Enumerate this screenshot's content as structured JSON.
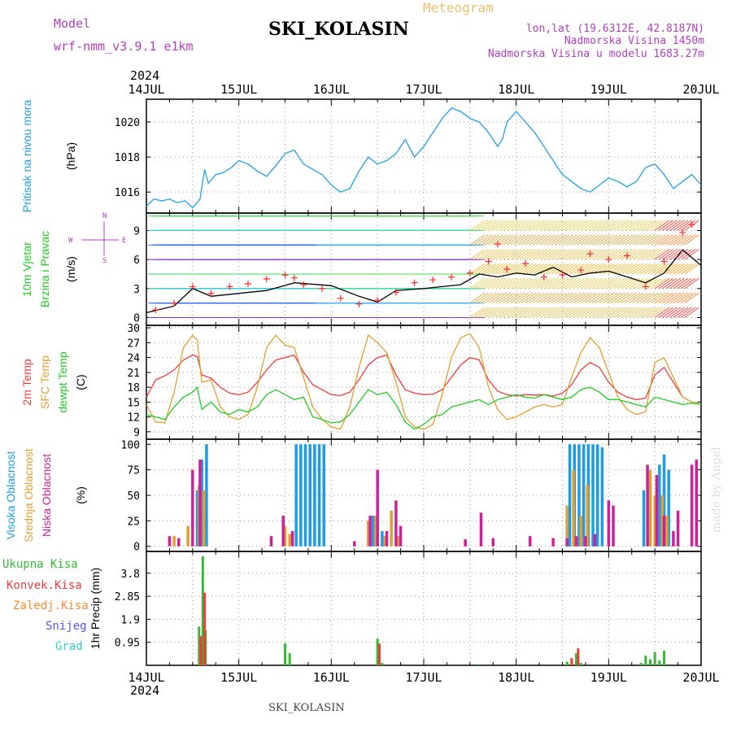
{
  "header": {
    "model_label": "Model",
    "model_name": "wrf-nmm_v3.9.1 e1km",
    "station": "SKI_KOLASIN",
    "product": "Meteogram",
    "lonlat": "lon,lat (19.6312E, 42.8187N)",
    "altitude": "Nadmorska Visina 1450m",
    "model_altitude": "Nadmorska Visina u modelu 1683.27m",
    "footer_station": "SKI_KOLASIN",
    "credit": "made by Angel"
  },
  "time_axis": {
    "year": "2024",
    "labels": [
      "14JUL",
      "15JUL",
      "16JUL",
      "17JUL",
      "18JUL",
      "19JUL",
      "20JUL"
    ]
  },
  "colors": {
    "pressure": "#1ea0e6",
    "wind_speed": "#000000",
    "gust": "#ff2a2a",
    "temp2m": "#ee3b3b",
    "sfc_temp": "#e0a030",
    "dewpt": "#22cc22",
    "high_cloud": "#1e9be6",
    "mid_cloud": "#e0a030",
    "low_cloud": "#cc2299",
    "total_precip": "#33bb33",
    "conv_precip": "#ee3b3b",
    "frz_precip": "#ff8833",
    "snow": "#5555ff",
    "hail": "#33cccc"
  },
  "chart_data": [
    {
      "type": "line",
      "id": "pressure",
      "ylabel": [
        "Pritisak na nivou mora",
        "(hPa)"
      ],
      "yticks": [
        1016,
        1018,
        1020
      ],
      "ylim": [
        1014.8,
        1021.3
      ],
      "grid": true,
      "series": [
        {
          "color_key": "pressure",
          "x": [
            0,
            0.08,
            0.17,
            0.25,
            0.33,
            0.42,
            0.5,
            0.58,
            0.63,
            0.67,
            0.75,
            0.83,
            0.92,
            1.0,
            1.1,
            1.2,
            1.3,
            1.4,
            1.5,
            1.6,
            1.7,
            1.8,
            1.9,
            2.0,
            2.1,
            2.2,
            2.3,
            2.4,
            2.5,
            2.6,
            2.7,
            2.8,
            2.9,
            3.0,
            3.1,
            3.2,
            3.3,
            3.4,
            3.5,
            3.6,
            3.7,
            3.8,
            3.85,
            3.9,
            4.0,
            4.1,
            4.2,
            4.3,
            4.4,
            4.5,
            4.6,
            4.7,
            4.8,
            4.9,
            5.0,
            5.1,
            5.2,
            5.3,
            5.4,
            5.5,
            5.6,
            5.7,
            5.8,
            5.9,
            6.0
          ],
          "y": [
            1015.2,
            1015.6,
            1015.5,
            1015.6,
            1015.4,
            1015.5,
            1015.1,
            1015.6,
            1017.3,
            1016.5,
            1017.0,
            1017.1,
            1017.4,
            1017.8,
            1017.6,
            1017.2,
            1016.9,
            1017.5,
            1018.2,
            1018.4,
            1017.6,
            1017.3,
            1017.0,
            1016.4,
            1016.0,
            1016.2,
            1017.2,
            1018.0,
            1017.6,
            1017.8,
            1018.2,
            1019.0,
            1018.0,
            1018.6,
            1019.4,
            1020.2,
            1020.8,
            1020.6,
            1020.2,
            1020.0,
            1019.4,
            1018.6,
            1019.0,
            1020.0,
            1020.6,
            1020.0,
            1019.4,
            1018.6,
            1017.8,
            1017.0,
            1016.6,
            1016.2,
            1016.0,
            1016.4,
            1016.8,
            1016.6,
            1016.3,
            1016.6,
            1017.4,
            1017.6,
            1017.0,
            1016.2,
            1016.6,
            1017.0,
            1016.4
          ]
        }
      ]
    },
    {
      "type": "line",
      "id": "wind",
      "ylabel": [
        "10m Vjetar",
        "Brzina i Pravac",
        "(m/s)"
      ],
      "compass": {
        "n": "N",
        "s": "S",
        "e": "E",
        "w": "W"
      },
      "yticks": [
        0,
        3,
        6,
        9
      ],
      "ylim": [
        -0.8,
        10.8
      ],
      "grid": true,
      "series": [
        {
          "name": "speed",
          "color_key": "wind_speed",
          "x": [
            0,
            0.3,
            0.5,
            0.7,
            1.0,
            1.3,
            1.6,
            2.0,
            2.3,
            2.5,
            2.7,
            3.0,
            3.2,
            3.4,
            3.6,
            3.8,
            4.0,
            4.2,
            4.4,
            4.6,
            4.8,
            5.0,
            5.2,
            5.4,
            5.6,
            5.8,
            6.0
          ],
          "y": [
            0.5,
            1.2,
            3.0,
            2.2,
            2.5,
            2.8,
            3.6,
            3.3,
            2.2,
            1.6,
            2.8,
            3.0,
            3.2,
            3.4,
            4.5,
            4.2,
            4.6,
            4.4,
            5.2,
            4.2,
            4.6,
            4.8,
            4.2,
            3.6,
            4.6,
            7.0,
            5.4
          ]
        },
        {
          "name": "gust",
          "color_key": "gust",
          "marker": "+",
          "x": [
            0.1,
            0.3,
            0.5,
            0.7,
            0.9,
            1.1,
            1.3,
            1.5,
            1.6,
            1.7,
            1.9,
            2.1,
            2.3,
            2.5,
            2.7,
            2.9,
            3.1,
            3.3,
            3.5,
            3.7,
            3.8,
            3.9,
            4.1,
            4.3,
            4.5,
            4.7,
            4.8,
            5.0,
            5.2,
            5.4,
            5.6,
            5.8,
            5.9
          ],
          "y": [
            0.8,
            1.5,
            3.2,
            2.5,
            3.2,
            3.5,
            4.0,
            4.4,
            4.1,
            3.4,
            3.0,
            2.0,
            1.4,
            1.8,
            2.6,
            3.6,
            3.9,
            4.2,
            4.6,
            5.8,
            7.6,
            5.0,
            5.6,
            4.2,
            4.4,
            4.9,
            6.6,
            6.0,
            6.4,
            3.2,
            5.8,
            8.8,
            9.6
          ]
        }
      ],
      "barbs_levels": [
        0,
        1.5,
        3,
        4.5,
        6,
        7.5,
        9,
        10.5
      ]
    },
    {
      "type": "line",
      "id": "temperature",
      "ylabel": [
        "2m Temp",
        "SFC Temp",
        "dewpt Temp",
        "(C)"
      ],
      "yticks": [
        9,
        12,
        15,
        18,
        21,
        24,
        27,
        30
      ],
      "ylim": [
        7.5,
        30.5
      ],
      "grid": true,
      "series": [
        {
          "name": "2m Temp",
          "color_key": "temp2m",
          "x": [
            0,
            0.1,
            0.2,
            0.3,
            0.4,
            0.5,
            0.55,
            0.6,
            0.7,
            0.8,
            0.9,
            1.0,
            1.1,
            1.2,
            1.3,
            1.4,
            1.5,
            1.6,
            1.7,
            1.8,
            1.9,
            2.0,
            2.1,
            2.2,
            2.3,
            2.4,
            2.5,
            2.6,
            2.7,
            2.8,
            2.9,
            3.0,
            3.1,
            3.2,
            3.3,
            3.4,
            3.5,
            3.6,
            3.7,
            3.8,
            3.9,
            4.0,
            4.1,
            4.2,
            4.3,
            4.4,
            4.5,
            4.6,
            4.7,
            4.8,
            4.9,
            5.0,
            5.1,
            5.2,
            5.3,
            5.4,
            5.5,
            5.6,
            5.7,
            5.8,
            5.9,
            6.0
          ],
          "y": [
            16,
            19.5,
            20.3,
            21.5,
            23.5,
            24.5,
            24.2,
            20.5,
            19.8,
            18.0,
            16.8,
            16.5,
            17.0,
            19.0,
            21.5,
            23.5,
            24.0,
            24.5,
            21.0,
            18.5,
            17.5,
            16.5,
            16.3,
            17.0,
            19.5,
            22.5,
            24.0,
            24.5,
            20.5,
            17.5,
            16.8,
            16.5,
            16.6,
            17.5,
            20.0,
            22.5,
            24.0,
            23.5,
            19.5,
            17.2,
            16.5,
            16.2,
            16.5,
            16.4,
            16.5,
            16.2,
            16.8,
            18.5,
            21.5,
            23.0,
            22.0,
            19.0,
            17.0,
            16.0,
            15.5,
            15.8,
            20.5,
            22.0,
            19.0,
            16.0,
            15.0,
            14.5
          ]
        },
        {
          "name": "SFC Temp",
          "color_key": "sfc_temp",
          "x": [
            0,
            0.1,
            0.2,
            0.3,
            0.4,
            0.5,
            0.55,
            0.6,
            0.7,
            0.8,
            0.9,
            1.0,
            1.1,
            1.2,
            1.3,
            1.4,
            1.5,
            1.6,
            1.7,
            1.8,
            1.9,
            2.0,
            2.1,
            2.2,
            2.3,
            2.4,
            2.5,
            2.6,
            2.7,
            2.8,
            2.9,
            3.0,
            3.1,
            3.2,
            3.3,
            3.4,
            3.5,
            3.6,
            3.7,
            3.8,
            3.9,
            4.0,
            4.1,
            4.2,
            4.3,
            4.4,
            4.5,
            4.6,
            4.7,
            4.8,
            4.9,
            5.0,
            5.1,
            5.2,
            5.3,
            5.4,
            5.5,
            5.6,
            5.7,
            5.8,
            5.9,
            6.0
          ],
          "y": [
            14.5,
            11.0,
            10.8,
            17.0,
            26.0,
            28.5,
            27.5,
            19.0,
            19.5,
            14.0,
            12.0,
            11.5,
            12.5,
            18.0,
            26.0,
            28.5,
            26.5,
            26.0,
            20.0,
            14.0,
            11.5,
            10.0,
            9.5,
            14.0,
            22.0,
            28.5,
            27.0,
            25.0,
            19.0,
            12.0,
            10.0,
            9.5,
            10.5,
            16.5,
            24.0,
            28.0,
            28.8,
            26.0,
            18.0,
            13.5,
            11.5,
            12.0,
            13.0,
            14.0,
            14.5,
            14.0,
            14.5,
            20.0,
            25.0,
            28.0,
            26.0,
            21.0,
            16.0,
            13.5,
            12.5,
            13.0,
            23.0,
            24.0,
            20.0,
            16.0,
            15.0,
            14.5
          ]
        },
        {
          "name": "dewpt Temp",
          "color_key": "dewpt",
          "x": [
            0,
            0.1,
            0.2,
            0.3,
            0.4,
            0.5,
            0.55,
            0.6,
            0.7,
            0.8,
            0.9,
            1.0,
            1.1,
            1.2,
            1.3,
            1.4,
            1.5,
            1.6,
            1.7,
            1.8,
            1.9,
            2.0,
            2.1,
            2.2,
            2.3,
            2.4,
            2.5,
            2.6,
            2.7,
            2.8,
            2.9,
            3.0,
            3.1,
            3.2,
            3.3,
            3.4,
            3.5,
            3.6,
            3.7,
            3.8,
            3.9,
            4.0,
            4.1,
            4.2,
            4.3,
            4.4,
            4.5,
            4.6,
            4.7,
            4.8,
            4.9,
            5.0,
            5.1,
            5.2,
            5.3,
            5.4,
            5.5,
            5.6,
            5.7,
            5.8,
            5.9,
            6.0
          ],
          "y": [
            12.5,
            12.0,
            11.5,
            14.0,
            16.0,
            17.0,
            18.0,
            13.5,
            15.0,
            13.0,
            12.5,
            13.5,
            13.0,
            14.0,
            16.5,
            17.5,
            16.5,
            15.5,
            16.0,
            12.0,
            11.5,
            10.8,
            11.0,
            12.5,
            15.0,
            17.5,
            16.5,
            17.0,
            14.5,
            11.0,
            9.5,
            10.5,
            12.0,
            12.5,
            14.0,
            14.5,
            15.0,
            15.5,
            14.5,
            15.5,
            16.0,
            16.5,
            16.0,
            15.8,
            16.5,
            16.0,
            15.5,
            16.0,
            17.5,
            18.0,
            17.0,
            15.5,
            15.5,
            15.0,
            14.5,
            14.0,
            16.0,
            15.5,
            15.0,
            14.5,
            14.8,
            14.5
          ]
        }
      ]
    },
    {
      "type": "bar",
      "id": "clouds",
      "ylabel": [
        "Visoka Oblacnost",
        "Srednja Oblacnost",
        "Niska Oblacnost",
        "(%)"
      ],
      "yticks": [
        0,
        25,
        50,
        75,
        100
      ],
      "ylim": [
        -5,
        105
      ],
      "grid": true,
      "series": [
        {
          "name": "Visoka Oblacnost",
          "color_key": "high_cloud",
          "x": [
            0.55,
            0.6,
            0.65,
            1.62,
            1.67,
            1.72,
            1.77,
            1.82,
            1.87,
            1.92,
            2.45,
            2.5,
            2.55,
            4.58,
            4.63,
            4.68,
            4.73,
            4.78,
            4.83,
            4.88,
            4.93,
            5.38,
            5.45,
            5.55,
            5.6,
            5.65
          ],
          "values": [
            55,
            85,
            100,
            100,
            100,
            100,
            100,
            100,
            100,
            100,
            30,
            20,
            15,
            100,
            100,
            100,
            100,
            100,
            100,
            100,
            97,
            55,
            60,
            80,
            90,
            75
          ]
        },
        {
          "name": "Srednja Oblacnost",
          "color_key": "mid_cloud",
          "x": [
            0.3,
            0.45,
            0.57,
            0.62,
            1.5,
            1.55,
            2.4,
            2.48,
            2.58,
            2.65,
            2.72,
            4.55,
            4.62,
            4.7,
            4.77,
            5.45,
            5.5,
            5.58,
            5.63,
            5.7
          ],
          "values": [
            10,
            20,
            60,
            55,
            20,
            12,
            25,
            30,
            10,
            35,
            10,
            40,
            75,
            30,
            60,
            75,
            50,
            50,
            30,
            5
          ]
        },
        {
          "name": "Niska Oblacnost",
          "color_key": "low_cloud",
          "x": [
            0.25,
            0.35,
            0.5,
            0.58,
            1.35,
            1.48,
            1.58,
            2.25,
            2.42,
            2.5,
            2.6,
            2.7,
            2.75,
            3.45,
            3.62,
            3.75,
            4.15,
            4.4,
            4.55,
            4.65,
            4.75,
            4.85,
            5.0,
            5.05,
            5.42,
            5.52,
            5.6,
            5.7,
            5.75,
            5.9,
            5.95
          ],
          "values": [
            10,
            8,
            75,
            85,
            10,
            30,
            15,
            5,
            30,
            75,
            15,
            45,
            20,
            7,
            33,
            8,
            10,
            8,
            8,
            10,
            10,
            12,
            45,
            40,
            80,
            70,
            30,
            15,
            35,
            80,
            85
          ]
        }
      ]
    },
    {
      "type": "bar",
      "id": "precip",
      "ylabel": [
        "1hr Precip (mm)"
      ],
      "legend": [
        "Ukupna Kisa",
        "Konvek.Kisa",
        "Zaledj.Kisa",
        "Snijeg",
        "Grad"
      ],
      "yticks": [
        0.95,
        1.9,
        2.85,
        3.8
      ],
      "ylim": [
        0,
        4.7
      ],
      "grid": true,
      "series": [
        {
          "name": "Ukupna Kisa",
          "color_key": "total_precip",
          "x": [
            0.57,
            0.61,
            0.64,
            1.5,
            1.55,
            2.5,
            2.55,
            3.6,
            4.55,
            4.65,
            4.7,
            5.35,
            5.4,
            5.45,
            5.5,
            5.55,
            5.6
          ],
          "values": [
            1.6,
            4.5,
            1.45,
            0.9,
            0.5,
            1.1,
            0.1,
            0.05,
            0.15,
            0.5,
            0.1,
            0.1,
            0.4,
            0.25,
            0.55,
            0.2,
            0.6
          ]
        },
        {
          "name": "Konvek.Kisa",
          "color_key": "conv_precip",
          "x": [
            0.59,
            0.63,
            2.52,
            4.6,
            4.67
          ],
          "values": [
            1.2,
            3.0,
            0.9,
            0.3,
            0.7
          ]
        }
      ]
    }
  ]
}
